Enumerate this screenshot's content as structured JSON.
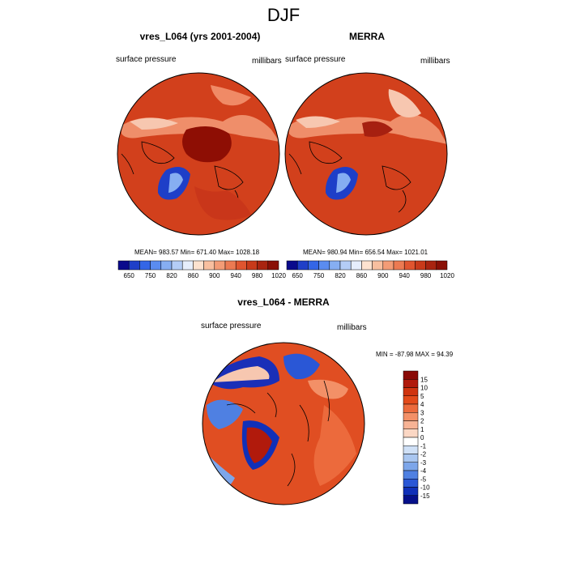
{
  "page_title": "DJF",
  "panels": [
    {
      "title": "vres_L064 (yrs 2001-2004)",
      "left_label": "surface pressure",
      "right_label": "millibars",
      "stats": "MEAN= 983.57   Min= 671.40   Max= 1028.18"
    },
    {
      "title": "MERRA",
      "left_label": "surface pressure",
      "right_label": "millibars",
      "stats": "MEAN= 980.94   Min= 656.54   Max= 1021.01"
    },
    {
      "title": "vres_L064 - MERRA",
      "left_label": "surface pressure",
      "right_label": "millibars",
      "stats": "MIN = -87.98  MAX =  94.39"
    }
  ],
  "chart_data": [
    {
      "type": "heatmap",
      "title": "vres_L064 (yrs 2001-2004)",
      "variable": "surface pressure",
      "units": "millibars",
      "mean": 983.57,
      "min": 671.4,
      "max": 1028.18,
      "colorbar_ticks": [
        "650",
        "750",
        "820",
        "860",
        "900",
        "940",
        "980",
        "1020"
      ],
      "colorbar_colors": [
        "#0a0a8c",
        "#1f3fc8",
        "#3466e6",
        "#5a8cf0",
        "#86aef2",
        "#b4cdf6",
        "#e6eefc",
        "#fde2cf",
        "#f8bf9f",
        "#f39c76",
        "#ec7a52",
        "#e0552f",
        "#c83a1a",
        "#a92410",
        "#8a1006"
      ]
    },
    {
      "type": "heatmap",
      "title": "MERRA",
      "variable": "surface pressure",
      "units": "millibars",
      "mean": 980.94,
      "min": 656.54,
      "max": 1021.01,
      "colorbar_ticks": [
        "650",
        "750",
        "820",
        "860",
        "900",
        "940",
        "980",
        "1020"
      ],
      "colorbar_colors": [
        "#0a0a8c",
        "#1f3fc8",
        "#3466e6",
        "#5a8cf0",
        "#86aef2",
        "#b4cdf6",
        "#e6eefc",
        "#fde2cf",
        "#f8bf9f",
        "#f39c76",
        "#ec7a52",
        "#e0552f",
        "#c83a1a",
        "#a92410",
        "#8a1006"
      ]
    },
    {
      "type": "heatmap",
      "title": "vres_L064 - MERRA",
      "variable": "surface pressure",
      "units": "millibars",
      "min": -87.98,
      "max": 94.39,
      "colorbar_ticks": [
        "15",
        "10",
        "5",
        "4",
        "3",
        "2",
        "1",
        "0",
        "-1",
        "-2",
        "-3",
        "-4",
        "-5",
        "-10",
        "-15"
      ],
      "colorbar_colors": [
        "#8a0a06",
        "#b11a0c",
        "#d0340f",
        "#e34a1a",
        "#ec6a3c",
        "#f39067",
        "#f7b395",
        "#fbd7c4",
        "#ffffff",
        "#cfe0f6",
        "#a9c6f0",
        "#7da6ea",
        "#4f80e2",
        "#2a57d6",
        "#1030b8",
        "#06108a"
      ]
    }
  ]
}
